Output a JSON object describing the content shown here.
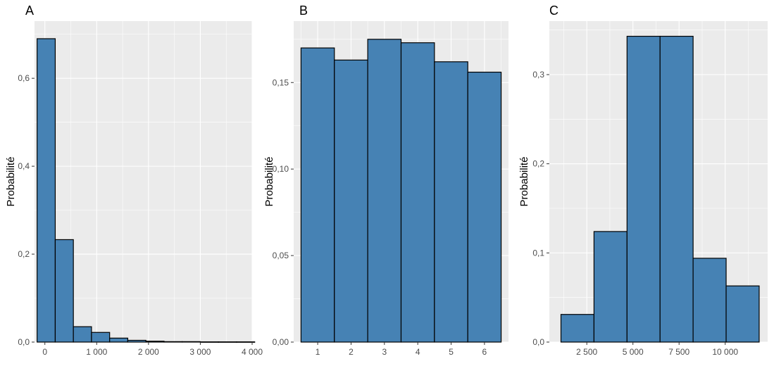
{
  "figure": {
    "background": "#ffffff"
  },
  "chart_data": [
    {
      "panel": "A",
      "type": "bar",
      "title": "",
      "xlabel": "",
      "ylabel": "Probabilité",
      "bar_color": "#4682b4",
      "bar_outline": "#000000",
      "plot_background": "#ebebeb",
      "grid": true,
      "xlim": [
        -200,
        4000
      ],
      "ylim": [
        0,
        0.73
      ],
      "bins": [
        {
          "x0": -150,
          "x1": 200,
          "value": 0.69
        },
        {
          "x0": 200,
          "x1": 550,
          "value": 0.233
        },
        {
          "x0": 550,
          "x1": 900,
          "value": 0.035
        },
        {
          "x0": 900,
          "x1": 1250,
          "value": 0.022
        },
        {
          "x0": 1250,
          "x1": 1600,
          "value": 0.009
        },
        {
          "x0": 1600,
          "x1": 1950,
          "value": 0.004
        },
        {
          "x0": 1950,
          "x1": 2300,
          "value": 0.002
        },
        {
          "x0": 2300,
          "x1": 2650,
          "value": 0.001
        },
        {
          "x0": 2650,
          "x1": 3000,
          "value": 0.001
        },
        {
          "x0": 3000,
          "x1": 3350,
          "value": 0.0005
        },
        {
          "x0": 3350,
          "x1": 3700,
          "value": 0.0005
        },
        {
          "x0": 3700,
          "x1": 4050,
          "value": 0.0005
        }
      ],
      "x_ticks": [
        {
          "value": 0,
          "label": "0"
        },
        {
          "value": 1000,
          "label": "1 000"
        },
        {
          "value": 2000,
          "label": "2 000"
        },
        {
          "value": 3000,
          "label": "3 000"
        },
        {
          "value": 4000,
          "label": "4 000"
        }
      ],
      "y_ticks": [
        {
          "value": 0,
          "label": "0,0"
        },
        {
          "value": 0.2,
          "label": "0,2"
        },
        {
          "value": 0.4,
          "label": "0,4"
        },
        {
          "value": 0.6,
          "label": "0,6"
        }
      ]
    },
    {
      "panel": "B",
      "type": "bar",
      "title": "",
      "xlabel": "",
      "ylabel": "Probabilité",
      "bar_color": "#4682b4",
      "bar_outline": "#000000",
      "plot_background": "#ebebeb",
      "grid": true,
      "xlim": [
        0.28,
        6.72
      ],
      "ylim": [
        0,
        0.1855
      ],
      "bins": [
        {
          "x0": 0.5,
          "x1": 1.5,
          "value": 0.17
        },
        {
          "x0": 1.5,
          "x1": 2.5,
          "value": 0.163
        },
        {
          "x0": 2.5,
          "x1": 3.5,
          "value": 0.175
        },
        {
          "x0": 3.5,
          "x1": 4.5,
          "value": 0.173
        },
        {
          "x0": 4.5,
          "x1": 5.5,
          "value": 0.162
        },
        {
          "x0": 5.5,
          "x1": 6.5,
          "value": 0.156
        }
      ],
      "x_ticks": [
        {
          "value": 1,
          "label": "1"
        },
        {
          "value": 2,
          "label": "2"
        },
        {
          "value": 3,
          "label": "3"
        },
        {
          "value": 4,
          "label": "4"
        },
        {
          "value": 5,
          "label": "5"
        },
        {
          "value": 6,
          "label": "6"
        }
      ],
      "y_ticks": [
        {
          "value": 0,
          "label": "0,00"
        },
        {
          "value": 0.05,
          "label": "0,05"
        },
        {
          "value": 0.1,
          "label": "0,10"
        },
        {
          "value": 0.15,
          "label": "0,15"
        }
      ]
    },
    {
      "panel": "C",
      "type": "bar",
      "title": "",
      "xlabel": "",
      "ylabel": "Probabilité",
      "bar_color": "#4682b4",
      "bar_outline": "#000000",
      "plot_background": "#ebebeb",
      "grid": true,
      "xlim": [
        470,
        12300
      ],
      "ylim": [
        0,
        0.36
      ],
      "bins": [
        {
          "x0": 1100,
          "x1": 2890,
          "value": 0.031
        },
        {
          "x0": 2890,
          "x1": 4680,
          "value": 0.124
        },
        {
          "x0": 4680,
          "x1": 6470,
          "value": 0.343
        },
        {
          "x0": 6470,
          "x1": 8260,
          "value": 0.343
        },
        {
          "x0": 8260,
          "x1": 10050,
          "value": 0.094
        },
        {
          "x0": 10050,
          "x1": 11840,
          "value": 0.063
        }
      ],
      "x_ticks": [
        {
          "value": 2500,
          "label": "2 500"
        },
        {
          "value": 5000,
          "label": "5 000"
        },
        {
          "value": 7500,
          "label": "7 500"
        },
        {
          "value": 10000,
          "label": "10 000"
        }
      ],
      "y_ticks": [
        {
          "value": 0,
          "label": "0,0"
        },
        {
          "value": 0.1,
          "label": "0,1"
        },
        {
          "value": 0.2,
          "label": "0,2"
        },
        {
          "value": 0.3,
          "label": "0,3"
        }
      ]
    }
  ]
}
